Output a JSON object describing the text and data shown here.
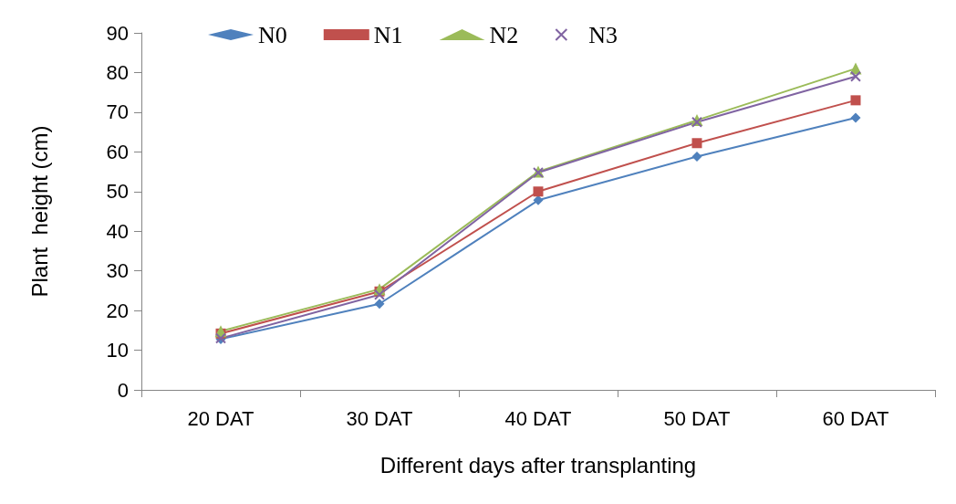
{
  "chart_data": {
    "type": "line",
    "xlabel": "Different days after transplanting",
    "ylabel": "Plant  height (cm)",
    "categories": [
      "20 DAT",
      "30 DAT",
      "40 DAT",
      "50 DAT",
      "60 DAT"
    ],
    "series": [
      {
        "name": "N0",
        "color": "#4f81bd",
        "marker": "diamond",
        "values": [
          12.8,
          21.7,
          47.8,
          58.8,
          68.6
        ]
      },
      {
        "name": "N1",
        "color": "#c0504d",
        "marker": "square",
        "values": [
          14.2,
          24.8,
          50,
          62.2,
          73
        ]
      },
      {
        "name": "N2",
        "color": "#9bbb59",
        "marker": "triangle",
        "values": [
          14.8,
          25.4,
          55,
          68,
          81
        ]
      },
      {
        "name": "N3",
        "color": "#8064a2",
        "marker": "cross",
        "values": [
          13,
          24,
          54.8,
          67.5,
          79
        ]
      }
    ],
    "ylim": [
      0,
      90
    ],
    "yticks": [
      0,
      10,
      20,
      30,
      40,
      50,
      60,
      70,
      80,
      90
    ],
    "grid": false,
    "legend": "top left",
    "line_style": "solid"
  }
}
